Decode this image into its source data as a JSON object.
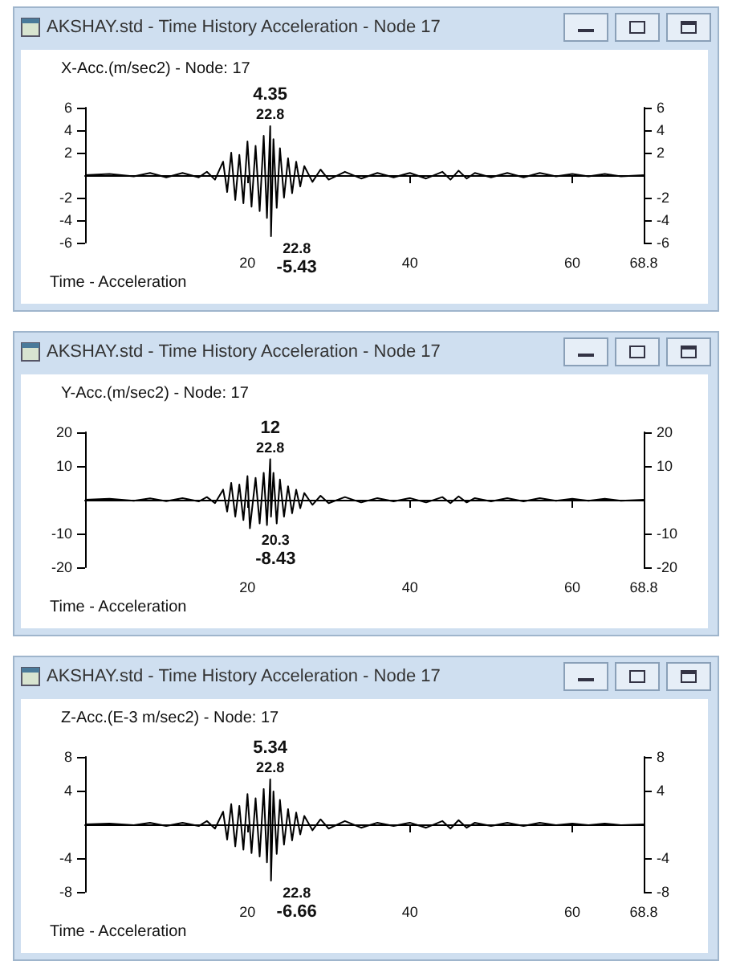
{
  "chart_data": [
    {
      "type": "line",
      "title": "AKSHAY.std - Time History Acceleration - Node 17",
      "subtitle": "X-Acc.(m/sec2) - Node: 17",
      "xlabel": "Time - Acceleration",
      "xlim": [
        0,
        68.8
      ],
      "xticks": [
        20,
        40,
        60,
        68.8
      ],
      "ylim": [
        -6,
        6
      ],
      "yticks": [
        -6,
        -4,
        -2,
        2,
        4,
        6
      ],
      "y2lim": [
        -6,
        6
      ],
      "y2ticks": [
        -6,
        -4,
        -2,
        2,
        4,
        6
      ],
      "grid": false,
      "marker": "none",
      "x": [
        0,
        3,
        6,
        8,
        10,
        12,
        14,
        15,
        16,
        17,
        17.5,
        18,
        18.5,
        19,
        19.5,
        20,
        20.5,
        21,
        21.5,
        22,
        22.4,
        22.8,
        22.9,
        23.2,
        23.6,
        24,
        24.5,
        25,
        25.5,
        26,
        26.5,
        27,
        28,
        29,
        30,
        32,
        34,
        36,
        38,
        40,
        42,
        44,
        45,
        46,
        47,
        48,
        50,
        52,
        54,
        56,
        58,
        60,
        62,
        64,
        66,
        68.8
      ],
      "series": [
        {
          "color": "#000000",
          "values": [
            0,
            0.1,
            -0.1,
            0.2,
            -0.2,
            0.2,
            -0.2,
            0.3,
            -0.4,
            1.2,
            -1.5,
            2.0,
            -2.2,
            1.8,
            -2.5,
            3.0,
            -2.8,
            2.6,
            -3.2,
            3.5,
            -3.8,
            4.35,
            -5.43,
            3.2,
            -2.9,
            2.4,
            -2.0,
            1.5,
            -1.6,
            1.2,
            -1.0,
            0.8,
            -0.6,
            0.5,
            -0.4,
            0.3,
            -0.3,
            0.2,
            -0.2,
            0.2,
            -0.3,
            0.3,
            -0.4,
            0.4,
            -0.3,
            0.2,
            -0.2,
            0.2,
            -0.2,
            0.2,
            -0.1,
            0.1,
            -0.1,
            0.1,
            -0.1,
            0
          ]
        }
      ],
      "annotations": [
        {
          "text": "4.35",
          "x": 22.8,
          "y": 4.35
        },
        {
          "text": "22.8",
          "x": 22.8,
          "y": 4.35
        },
        {
          "text": "22.8",
          "x": 22.9,
          "y": -5.43
        },
        {
          "text": "-5.43",
          "x": 22.9,
          "y": -5.43
        }
      ]
    },
    {
      "type": "line",
      "title": "AKSHAY.std - Time History Acceleration - Node 17",
      "subtitle": "Y-Acc.(m/sec2) - Node: 17",
      "xlabel": "Time - Acceleration",
      "xlim": [
        0,
        68.8
      ],
      "xticks": [
        20,
        40,
        60,
        68.8
      ],
      "ylim": [
        -20,
        20
      ],
      "yticks": [
        -20,
        -10,
        10,
        20
      ],
      "y2lim": [
        -20,
        20
      ],
      "y2ticks": [
        -20,
        -10,
        10,
        20
      ],
      "grid": false,
      "marker": "none",
      "x": [
        0,
        3,
        6,
        8,
        10,
        12,
        14,
        15,
        16,
        17,
        17.5,
        18,
        18.5,
        19,
        19.5,
        20,
        20.3,
        21,
        21.5,
        22,
        22.4,
        22.8,
        22.9,
        23.2,
        23.6,
        24,
        24.5,
        25,
        25.5,
        26,
        26.5,
        27,
        28,
        29,
        30,
        32,
        34,
        36,
        38,
        40,
        42,
        44,
        45,
        46,
        47,
        48,
        50,
        52,
        54,
        56,
        58,
        60,
        62,
        64,
        66,
        68.8
      ],
      "series": [
        {
          "color": "#000000",
          "values": [
            0,
            0.3,
            -0.3,
            0.4,
            -0.4,
            0.5,
            -0.5,
            0.8,
            -1,
            3,
            -3.5,
            5,
            -5,
            4.5,
            -6,
            7,
            -8.43,
            6.5,
            -7,
            8,
            -7.5,
            12,
            -5,
            8,
            -7,
            6,
            -5,
            4,
            -4,
            3,
            -2.5,
            2,
            -1.5,
            1.2,
            -1,
            0.8,
            -0.8,
            0.5,
            -0.5,
            0.5,
            -0.8,
            0.8,
            -1,
            1,
            -0.8,
            0.5,
            -0.5,
            0.5,
            -0.5,
            0.5,
            -0.3,
            0.3,
            -0.3,
            0.3,
            -0.3,
            0
          ]
        }
      ],
      "annotations": [
        {
          "text": "12",
          "x": 22.8,
          "y": 12
        },
        {
          "text": "22.8",
          "x": 22.8,
          "y": 12
        },
        {
          "text": "20.3",
          "x": 20.3,
          "y": -8.43
        },
        {
          "text": "-8.43",
          "x": 20.3,
          "y": -8.43
        }
      ]
    },
    {
      "type": "line",
      "title": "AKSHAY.std - Time History Acceleration - Node 17",
      "subtitle": "Z-Acc.(E-3 m/sec2) - Node: 17",
      "xlabel": "Time - Acceleration",
      "xlim": [
        0,
        68.8
      ],
      "xticks": [
        20,
        40,
        60,
        68.8
      ],
      "ylim": [
        -8,
        8
      ],
      "yticks": [
        -8,
        -4,
        4,
        8
      ],
      "y2lim": [
        -8,
        8
      ],
      "y2ticks": [
        -8,
        -4,
        4,
        8
      ],
      "grid": false,
      "marker": "none",
      "x": [
        0,
        3,
        6,
        8,
        10,
        12,
        14,
        15,
        16,
        17,
        17.5,
        18,
        18.5,
        19,
        19.5,
        20,
        20.5,
        21,
        21.5,
        22,
        22.4,
        22.8,
        22.9,
        23.2,
        23.6,
        24,
        24.5,
        25,
        25.5,
        26,
        26.5,
        27,
        28,
        29,
        30,
        32,
        34,
        36,
        38,
        40,
        42,
        44,
        45,
        46,
        47,
        48,
        50,
        52,
        54,
        56,
        58,
        60,
        62,
        64,
        66,
        68.8
      ],
      "series": [
        {
          "color": "#000000",
          "values": [
            0,
            0.1,
            -0.1,
            0.2,
            -0.2,
            0.2,
            -0.2,
            0.4,
            -0.5,
            1.5,
            -1.8,
            2.4,
            -2.6,
            2.2,
            -3,
            3.6,
            -3.4,
            3.1,
            -3.8,
            4.2,
            -4.5,
            5.34,
            -6.66,
            3.9,
            -3.5,
            2.9,
            -2.4,
            1.8,
            -1.9,
            1.4,
            -1.2,
            1,
            -0.7,
            0.6,
            -0.5,
            0.4,
            -0.4,
            0.2,
            -0.2,
            0.2,
            -0.4,
            0.4,
            -0.5,
            0.5,
            -0.4,
            0.2,
            -0.2,
            0.2,
            -0.2,
            0.2,
            -0.1,
            0.1,
            -0.1,
            0.1,
            -0.1,
            0
          ]
        }
      ],
      "annotations": [
        {
          "text": "5.34",
          "x": 22.8,
          "y": 5.34
        },
        {
          "text": "22.8",
          "x": 22.8,
          "y": 5.34
        },
        {
          "text": "22.8",
          "x": 22.9,
          "y": -6.66
        },
        {
          "text": "-6.66",
          "x": 22.9,
          "y": -6.66
        }
      ]
    }
  ]
}
